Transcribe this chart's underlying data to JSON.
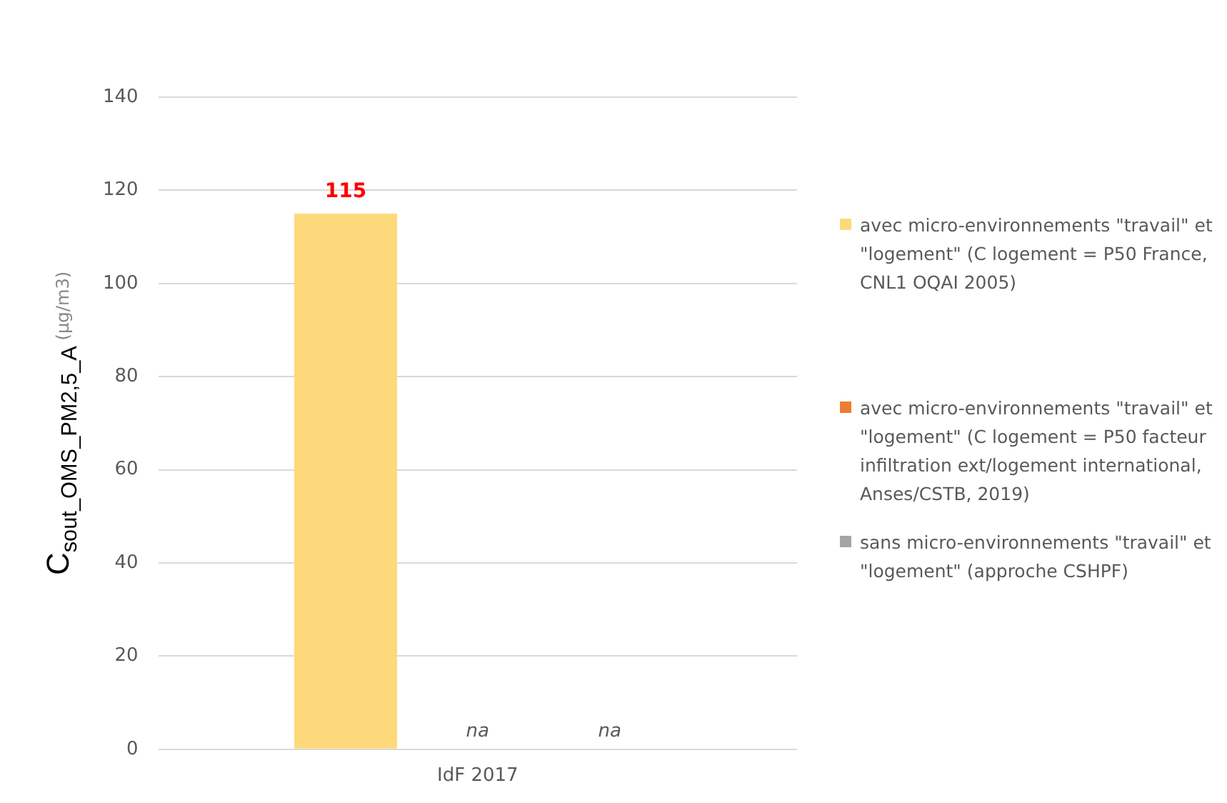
{
  "chart_data": {
    "type": "bar",
    "ylabel": "C$_{sout_OMS_PM2,5_A}$ (µg/m3)",
    "categories": [
      "IdF 2017"
    ],
    "series": [
      {
        "name": "avec micro-environnements \"travail\" et \"logement\" (C logement = P50 France, CNL1 OQAI 2005)",
        "color": "#fed97c",
        "values": [
          115
        ],
        "value_labels": [
          "115"
        ]
      },
      {
        "name": "avec micro-environnements \"travail\" et \"logement\" (C logement = P50 facteur infiltration ext/logement international, Anses/CSTB, 2019)",
        "color": "#ed7d31",
        "values": [
          null
        ],
        "value_labels": [
          "na"
        ]
      },
      {
        "name": "sans micro-environnements \"travail\" et \"logement\" (approche CSHPF)",
        "color": "#a5a5a5",
        "values": [
          null
        ],
        "value_labels": [
          "na"
        ]
      }
    ],
    "ylim": [
      0,
      140
    ],
    "yticks": [
      0,
      20,
      40,
      60,
      80,
      100,
      120,
      140
    ],
    "grid": "y",
    "legend": "right"
  }
}
